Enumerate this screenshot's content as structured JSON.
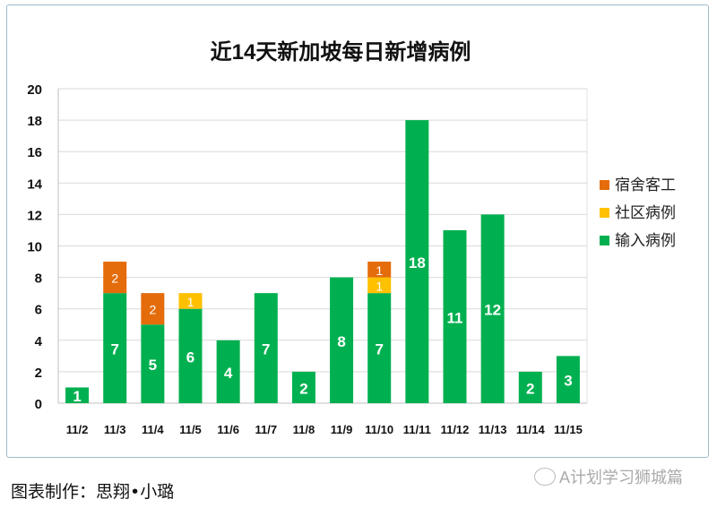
{
  "chart_data": {
    "type": "bar",
    "stacked": true,
    "title": "近14天新加坡每日新增病例",
    "categories": [
      "11/2",
      "11/3",
      "11/4",
      "11/5",
      "11/6",
      "11/7",
      "11/8",
      "11/9",
      "11/10",
      "11/11",
      "11/12",
      "11/13",
      "11/14",
      "11/15"
    ],
    "series": [
      {
        "name": "输入病例",
        "color": "#00b050",
        "values": [
          1,
          7,
          5,
          6,
          4,
          7,
          2,
          8,
          7,
          18,
          11,
          12,
          2,
          3
        ]
      },
      {
        "name": "社区病例",
        "color": "#ffc000",
        "values": [
          0,
          0,
          0,
          1,
          0,
          0,
          0,
          0,
          1,
          0,
          0,
          0,
          0,
          0
        ]
      },
      {
        "name": "宿舍客工",
        "color": "#e46c0a",
        "values": [
          0,
          2,
          2,
          0,
          0,
          0,
          0,
          0,
          1,
          0,
          0,
          0,
          0,
          0
        ]
      }
    ],
    "legend_order": [
      "宿舍客工",
      "社区病例",
      "输入病例"
    ],
    "legend_position": "right",
    "ylim": [
      0,
      20
    ],
    "yticks": [
      "0",
      "2",
      "4",
      "6",
      "8",
      "10",
      "12",
      "14",
      "16",
      "18",
      "20"
    ],
    "grid": true,
    "xlabel": "",
    "ylabel": ""
  },
  "footer": {
    "credit": "图表制作：思翔•小璐",
    "watermark": "A计划学习狮城篇"
  }
}
